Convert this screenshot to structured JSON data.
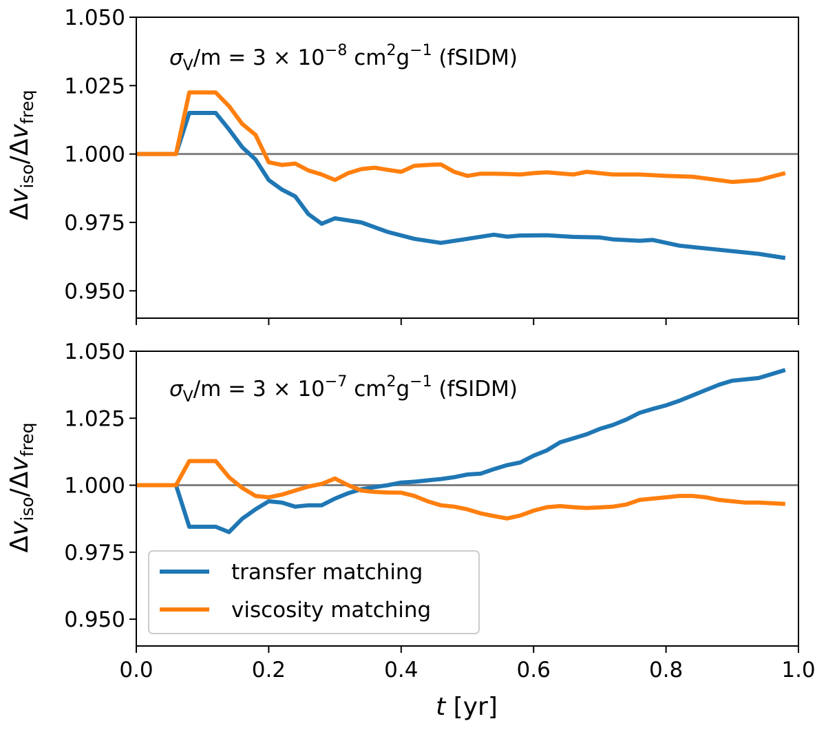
{
  "colors": {
    "transfer": "#1f77b4",
    "viscosity": "#ff7f0e",
    "reference": "#808080",
    "axes": "#000000",
    "legend_border": "#cccccc"
  },
  "chart_data": [
    {
      "type": "line",
      "panel": "top",
      "annotation": {
        "sigma_sub": "V",
        "mid": "/m = 3 × 10",
        "exponent": "−8",
        "units": " cm",
        "unit_exp1": "2",
        "unit_g": "g",
        "unit_exp2": "−1",
        "tag": " (fSIDM)"
      },
      "ylabel": {
        "delta1": "Δ",
        "v1": "v",
        "sub1": "iso",
        "slash": "/Δ",
        "v2": "v",
        "sub2": "freq"
      },
      "xlim": [
        0.0,
        1.0
      ],
      "ylim": [
        0.94,
        1.05
      ],
      "yticks": [
        "0.950",
        "0.975",
        "1.000",
        "1.025",
        "1.050"
      ],
      "ytick_values": [
        0.95,
        0.975,
        1.0,
        1.025,
        1.05
      ],
      "reference_line": 1.0,
      "series": [
        {
          "name": "transfer matching",
          "x": [
            0.0,
            0.02,
            0.04,
            0.06,
            0.08,
            0.1,
            0.12,
            0.14,
            0.16,
            0.18,
            0.2,
            0.22,
            0.24,
            0.26,
            0.28,
            0.3,
            0.34,
            0.38,
            0.42,
            0.46,
            0.5,
            0.54,
            0.56,
            0.58,
            0.62,
            0.66,
            0.7,
            0.72,
            0.76,
            0.78,
            0.82,
            0.86,
            0.9,
            0.94,
            0.98
          ],
          "values": [
            1.0,
            1.0,
            1.0,
            1.0,
            1.015,
            1.015,
            1.015,
            1.009,
            1.0025,
            0.998,
            0.9905,
            0.987,
            0.9845,
            0.978,
            0.9745,
            0.9765,
            0.975,
            0.9715,
            0.969,
            0.9675,
            0.969,
            0.9705,
            0.9698,
            0.9702,
            0.9703,
            0.9697,
            0.9695,
            0.9688,
            0.9683,
            0.9686,
            0.9665,
            0.9655,
            0.9645,
            0.9635,
            0.962
          ]
        },
        {
          "name": "viscosity matching",
          "x": [
            0.0,
            0.02,
            0.04,
            0.06,
            0.08,
            0.1,
            0.12,
            0.14,
            0.16,
            0.18,
            0.2,
            0.22,
            0.24,
            0.26,
            0.28,
            0.3,
            0.32,
            0.34,
            0.36,
            0.38,
            0.4,
            0.42,
            0.44,
            0.46,
            0.48,
            0.5,
            0.52,
            0.54,
            0.56,
            0.58,
            0.6,
            0.62,
            0.66,
            0.68,
            0.72,
            0.76,
            0.8,
            0.84,
            0.9,
            0.94,
            0.98
          ],
          "values": [
            1.0,
            1.0,
            1.0,
            1.0,
            1.0225,
            1.0225,
            1.0225,
            1.0175,
            1.011,
            1.007,
            0.997,
            0.996,
            0.9965,
            0.994,
            0.9925,
            0.9905,
            0.993,
            0.9945,
            0.995,
            0.9942,
            0.9935,
            0.9957,
            0.996,
            0.9962,
            0.9935,
            0.992,
            0.9928,
            0.9928,
            0.9927,
            0.9925,
            0.993,
            0.9933,
            0.9925,
            0.9935,
            0.9925,
            0.9925,
            0.992,
            0.9917,
            0.9898,
            0.9905,
            0.993
          ]
        }
      ]
    },
    {
      "type": "line",
      "panel": "bottom",
      "annotation": {
        "sigma_sub": "V",
        "mid": "/m = 3 × 10",
        "exponent": "−7",
        "units": " cm",
        "unit_exp1": "2",
        "unit_g": "g",
        "unit_exp2": "−1",
        "tag": " (fSIDM)"
      },
      "ylabel": {
        "delta1": "Δ",
        "v1": "v",
        "sub1": "iso",
        "slash": "/Δ",
        "v2": "v",
        "sub2": "freq"
      },
      "xlabel": {
        "var": "t",
        "unit": " [yr]"
      },
      "xlim": [
        0.0,
        1.0
      ],
      "ylim": [
        0.94,
        1.05
      ],
      "xticks": [
        "0.0",
        "0.2",
        "0.4",
        "0.6",
        "0.8",
        "1.0"
      ],
      "xtick_values": [
        0.0,
        0.2,
        0.4,
        0.6,
        0.8,
        1.0
      ],
      "yticks": [
        "0.950",
        "0.975",
        "1.000",
        "1.025",
        "1.050"
      ],
      "ytick_values": [
        0.95,
        0.975,
        1.0,
        1.025,
        1.05
      ],
      "reference_line": 1.0,
      "legend": {
        "placement": "lower-left",
        "entries": [
          "transfer matching",
          "viscosity matching"
        ]
      },
      "series": [
        {
          "name": "transfer matching",
          "x": [
            0.0,
            0.02,
            0.04,
            0.06,
            0.08,
            0.1,
            0.12,
            0.14,
            0.16,
            0.18,
            0.2,
            0.22,
            0.24,
            0.26,
            0.28,
            0.3,
            0.32,
            0.34,
            0.36,
            0.38,
            0.4,
            0.42,
            0.44,
            0.46,
            0.48,
            0.5,
            0.52,
            0.54,
            0.56,
            0.58,
            0.6,
            0.62,
            0.64,
            0.66,
            0.68,
            0.7,
            0.72,
            0.74,
            0.76,
            0.78,
            0.8,
            0.82,
            0.84,
            0.86,
            0.88,
            0.9,
            0.92,
            0.94,
            0.98
          ],
          "values": [
            1.0,
            1.0,
            1.0,
            1.0,
            0.9845,
            0.9845,
            0.9845,
            0.9825,
            0.9875,
            0.991,
            0.994,
            0.9935,
            0.992,
            0.9925,
            0.9925,
            0.995,
            0.997,
            0.9985,
            0.9993,
            1.0,
            1.001,
            1.0013,
            1.0018,
            1.0023,
            1.003,
            1.004,
            1.0043,
            1.006,
            1.0075,
            1.0085,
            1.011,
            1.013,
            1.016,
            1.0175,
            1.019,
            1.021,
            1.0225,
            1.0245,
            1.027,
            1.0285,
            1.0298,
            1.0315,
            1.0335,
            1.0355,
            1.0375,
            1.039,
            1.0395,
            1.04,
            1.043
          ]
        },
        {
          "name": "viscosity matching",
          "x": [
            0.0,
            0.02,
            0.04,
            0.06,
            0.08,
            0.1,
            0.12,
            0.14,
            0.16,
            0.18,
            0.2,
            0.22,
            0.24,
            0.26,
            0.28,
            0.3,
            0.32,
            0.34,
            0.36,
            0.38,
            0.4,
            0.42,
            0.44,
            0.46,
            0.48,
            0.5,
            0.52,
            0.54,
            0.56,
            0.58,
            0.6,
            0.62,
            0.64,
            0.66,
            0.68,
            0.7,
            0.72,
            0.74,
            0.76,
            0.78,
            0.8,
            0.82,
            0.84,
            0.86,
            0.88,
            0.9,
            0.92,
            0.94,
            0.98
          ],
          "values": [
            1.0,
            1.0,
            1.0,
            1.0,
            1.009,
            1.009,
            1.009,
            1.003,
            0.999,
            0.996,
            0.9955,
            0.9965,
            0.998,
            0.9995,
            1.0005,
            1.0025,
            1.0,
            0.998,
            0.9975,
            0.9973,
            0.9972,
            0.996,
            0.994,
            0.9925,
            0.992,
            0.991,
            0.9895,
            0.9885,
            0.9876,
            0.9887,
            0.9905,
            0.9918,
            0.9922,
            0.9918,
            0.9915,
            0.9917,
            0.992,
            0.9928,
            0.9945,
            0.995,
            0.9955,
            0.996,
            0.996,
            0.9955,
            0.9945,
            0.994,
            0.9935,
            0.9935,
            0.993
          ]
        }
      ]
    }
  ]
}
